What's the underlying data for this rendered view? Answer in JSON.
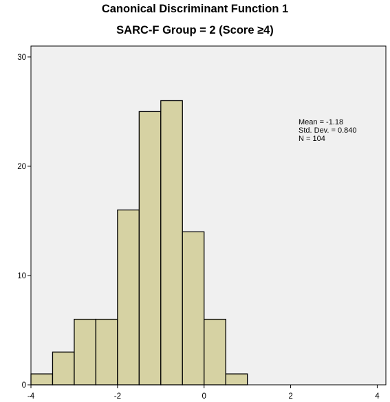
{
  "chart_data": {
    "type": "bar",
    "subtype": "histogram",
    "title": "Canonical Discriminant Function 1",
    "subtitle": "SARC-F Group = 2 (Score ≥4)",
    "xlabel": "",
    "ylabel": "",
    "bin_edges": [
      -4.0,
      -3.5,
      -3.0,
      -2.5,
      -2.0,
      -1.5,
      -1.0,
      -0.5,
      0.0,
      0.5,
      1.0
    ],
    "values": [
      1,
      3,
      6,
      6,
      16,
      25,
      26,
      14,
      6,
      1
    ],
    "xlim": [
      -4.0,
      4.2
    ],
    "ylim": [
      0,
      31
    ],
    "x_ticks": [
      -4,
      -2,
      0,
      2,
      4
    ],
    "y_ticks": [
      0,
      10,
      20,
      30
    ],
    "grid": false,
    "stats": [
      "Mean = -1.18",
      "Std. Dev. = 0.840",
      "N = 104"
    ],
    "colors": {
      "bar_fill": "#d6d2a3",
      "bar_stroke": "#000000",
      "plot_background": "#f0f0f0"
    }
  }
}
